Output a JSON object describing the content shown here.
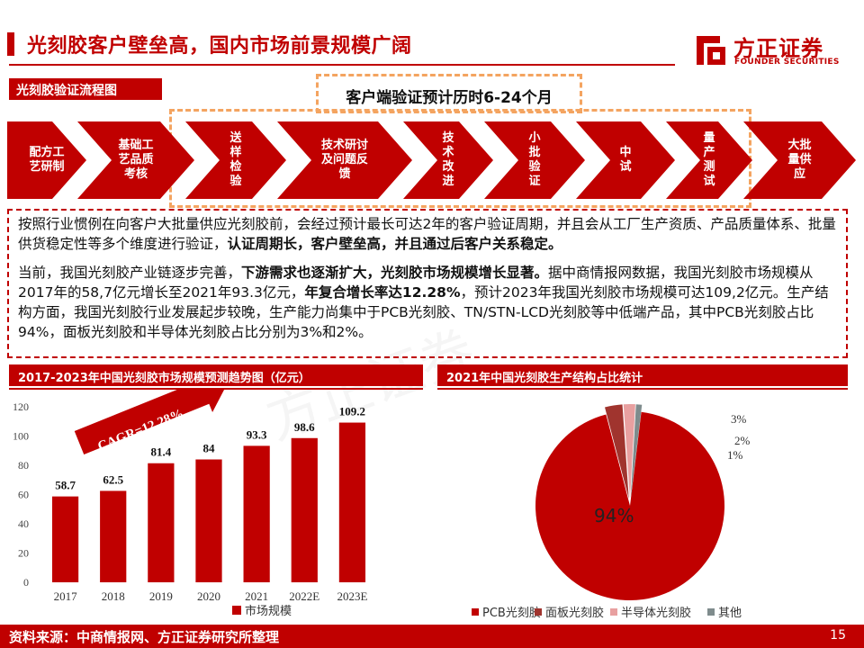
{
  "header": {
    "title": "光刻胶客户壁垒高，国内市场前景规模广阔",
    "logo_cn": "方正证券",
    "logo_en": "FOUNDER SECURITIES"
  },
  "flow": {
    "label": "光刻胶验证流程图",
    "verify_title": "客户端验证预计历时6-24个月",
    "steps": [
      "配方工艺研制",
      "基础工艺品质考核",
      "送样检验",
      "技术研讨及问题反馈",
      "技术改进",
      "小批验证",
      "中试",
      "量产测试",
      "大批量供应"
    ]
  },
  "text": {
    "p1_a": "按照行业惯例在向客户大批量供应光刻胶前，会经过预计最长可达2年的客户验证周期，并且会从工厂生产资质、产品质量体系、批量供货稳定性等多个维度进行验证，",
    "p1_b": "认证周期长，客户壁垒高，并且通过后客户关系稳定。",
    "p2_a": "当前，我国光刻胶产业链逐步完善，",
    "p2_b": "下游需求也逐渐扩大，光刻胶市场规模增长显著。",
    "p2_c": "据中商情报网数据，我国光刻胶市场规模从2017年的58,7亿元增长至2021年93.3亿元，",
    "p2_d": "年复合增长率达12.28%",
    "p2_e": "，预计2023年我国光刻胶市场规模可达109,2亿元。生产结构方面，我国光刻胶行业发展起步较晚，生产能力尚集中于PCB光刻胶、TN/STN-LCD光刻胶等中低端产品，其中PCB光刻胶占比94%，面板光刻胶和半导体光刻胶占比分别为3%和2%。"
  },
  "sections": {
    "left_title": "2017-2023年中国光刻胶市场规模预测趋势图（亿元）",
    "right_title": "2021年中国光刻胶生产结构占比统计"
  },
  "chart_data": [
    {
      "type": "bar",
      "title": "",
      "categories": [
        "2017",
        "2018",
        "2019",
        "2020",
        "2021",
        "2022E",
        "2023E"
      ],
      "series": [
        {
          "name": "市场规模",
          "values": [
            58.7,
            62.5,
            81.4,
            84,
            93.3,
            98.6,
            109.2
          ]
        }
      ],
      "ylim": [
        0,
        120
      ],
      "yticks": [
        0,
        20,
        40,
        60,
        80,
        100,
        120
      ],
      "annotation": "CAGR=12.28%",
      "color": "#c00000",
      "legend": "bottom"
    },
    {
      "type": "pie",
      "title": "",
      "slices": [
        {
          "name": "PCB光刻胶",
          "value": 94,
          "label": "94%",
          "color": "#c00000"
        },
        {
          "name": "面板光刻胶",
          "value": 3,
          "label": "3%",
          "color": "#a0342e"
        },
        {
          "name": "半导体光刻胶",
          "value": 2,
          "label": "2%",
          "color": "#e8a0a0"
        },
        {
          "name": "其他",
          "value": 1,
          "label": "1%",
          "color": "#7f8c8d"
        }
      ],
      "legend": "bottom"
    }
  ],
  "footer": {
    "source": "资料来源：中商情报网、方正证券研究所整理",
    "page": "15"
  }
}
